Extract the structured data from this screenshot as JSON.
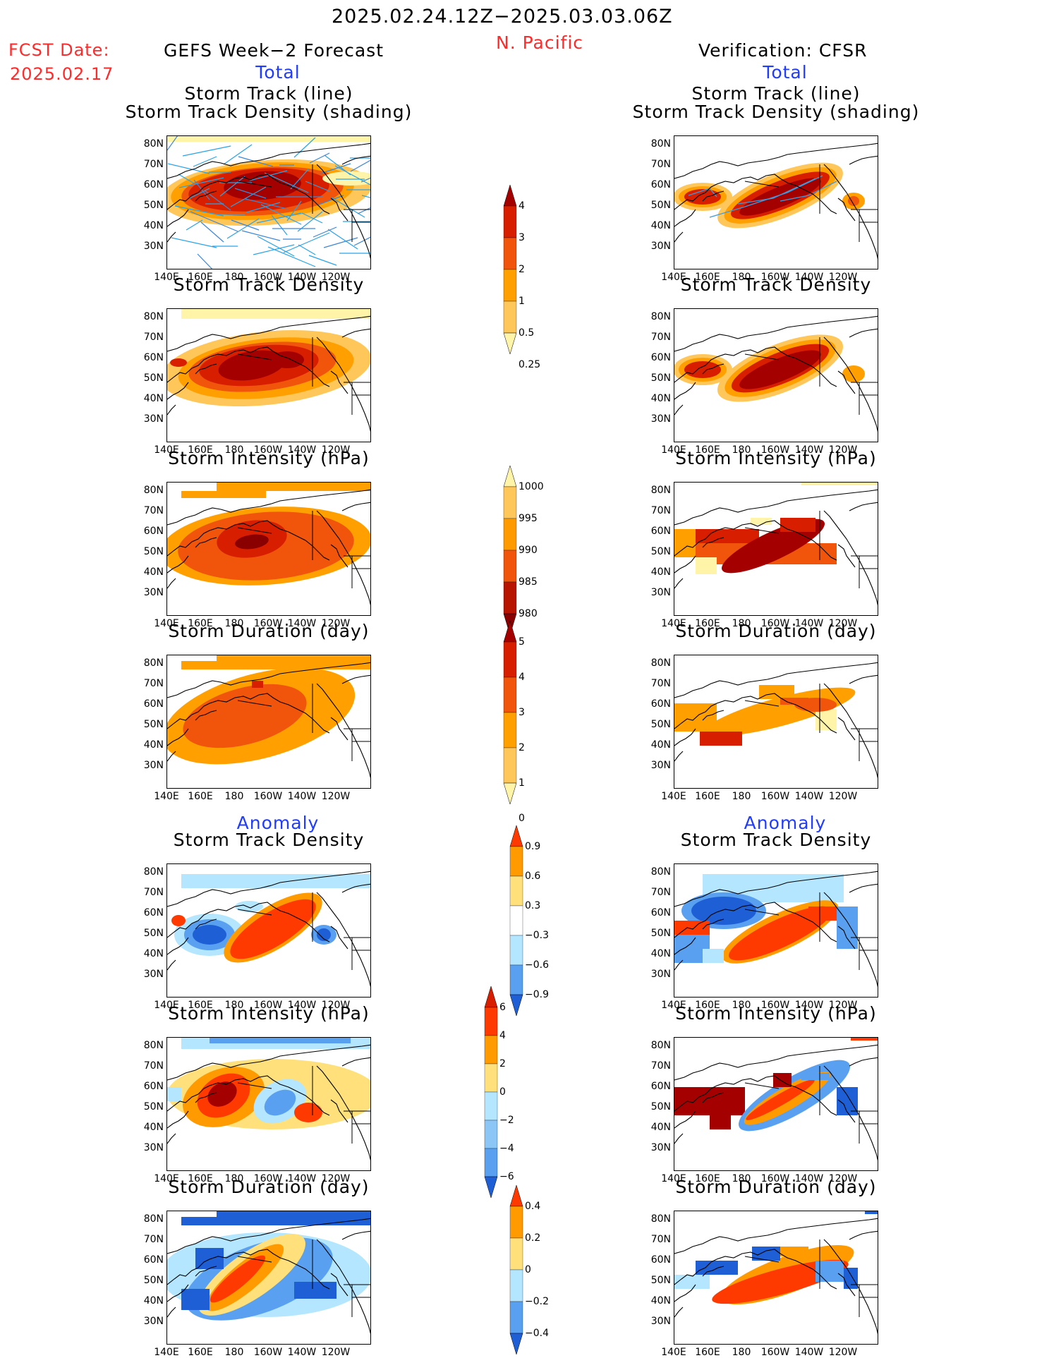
{
  "header": {
    "date_range": "2025.02.24.12Z−2025.03.03.06Z",
    "region": "N. Pacific",
    "fcst_label": "FCST Date:",
    "fcst_date": "2025.02.17",
    "left_title": "GEFS Week−2 Forecast",
    "right_title": "Verification: CFSR",
    "total_label": "Total",
    "anomaly_label": "Anomaly"
  },
  "panel_titles": {
    "track_line": "Storm Track (line)",
    "track_shading": "Storm Track Density (shading)",
    "density": "Storm Track Density",
    "intensity": "Storm Intensity (hPa)",
    "duration": "Storm Duration (day)"
  },
  "axes": {
    "lat_ticks": [
      "80N",
      "70N",
      "60N",
      "50N",
      "40N",
      "30N"
    ],
    "lon_ticks": [
      "140E",
      "160E",
      "180",
      "160W",
      "140W",
      "120W"
    ]
  },
  "colorbars": {
    "density_total": {
      "labels": [
        "4",
        "3",
        "2",
        "1",
        "0.5",
        "0.25"
      ],
      "colors": [
        "#a50000",
        "#d71f00",
        "#f0550b",
        "#ffa000",
        "#ffc65a",
        "#fff4a8"
      ]
    },
    "intensity_total": {
      "labels": [
        "1000",
        "995",
        "990",
        "985",
        "980"
      ],
      "colors": [
        "#fff4a8",
        "#ffc65a",
        "#ff9b00",
        "#f0550b",
        "#b81500",
        "#8a0000"
      ]
    },
    "duration_total": {
      "labels": [
        "5",
        "4",
        "3",
        "2",
        "1",
        "0"
      ],
      "colors": [
        "#a50000",
        "#d71f00",
        "#f0550b",
        "#ffa000",
        "#ffc65a",
        "#fff4a8"
      ]
    },
    "density_anom": {
      "labels": [
        "0.9",
        "0.6",
        "0.3",
        "−0.3",
        "−0.6",
        "−0.9"
      ],
      "colors": [
        "#ff3a00",
        "#ff9b00",
        "#ffe07a",
        "#ffffff",
        "#b4e6ff",
        "#5aa0f0",
        "#1f5fd6"
      ]
    },
    "intensity_anom": {
      "labels": [
        "6",
        "4",
        "2",
        "0",
        "−2",
        "−4",
        "−6"
      ],
      "colors": [
        "#d71f00",
        "#ff3a00",
        "#ff9b00",
        "#ffe07a",
        "#b4e6ff",
        "#8cc6f6",
        "#5aa0f0",
        "#1f5fd6"
      ]
    },
    "duration_anom": {
      "labels": [
        "0.4",
        "0.2",
        "0",
        "−0.2",
        "−0.4"
      ],
      "colors": [
        "#ff3a00",
        "#ff9b00",
        "#ffe07a",
        "#b4e6ff",
        "#5aa0f0",
        "#1f5fd6"
      ]
    }
  }
}
